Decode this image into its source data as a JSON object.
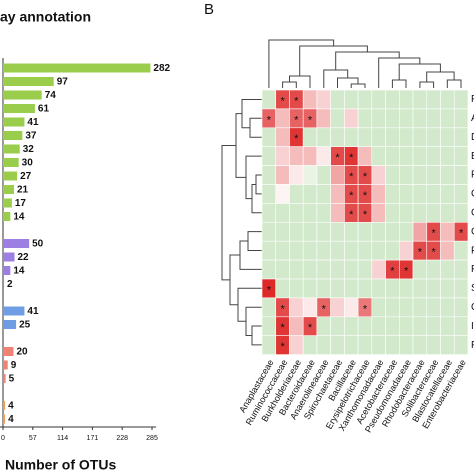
{
  "chart_data": [
    {
      "type": "bar",
      "orientation": "horizontal",
      "title": "ay annotation",
      "x_label": "Number of OTUs",
      "xlim": [
        0,
        285
      ],
      "xticks": [
        0,
        57,
        114,
        171,
        228,
        285
      ],
      "series": [
        {
          "color": "#9acd4c",
          "values": [
            282,
            97,
            74,
            61,
            41,
            37,
            32,
            30,
            27,
            21,
            17,
            14
          ]
        },
        {
          "color": "#9b7fe2",
          "values": [
            50,
            22,
            14,
            2
          ]
        },
        {
          "color": "#6e9de3",
          "values": [
            41,
            25
          ]
        },
        {
          "color": "#ef8272",
          "values": [
            20,
            9,
            5
          ]
        },
        {
          "color": "#f0a050",
          "values": [
            4,
            4
          ]
        }
      ]
    },
    {
      "type": "heatmap",
      "panel_label": "B",
      "rows": [
        "F",
        "A",
        "D",
        "Bi",
        "P",
        "C",
        "G",
        "G",
        "P",
        "P",
        "S",
        "G",
        "In",
        "P"
      ],
      "columns": [
        "Anaplastaceae",
        "Ruminococcaceae",
        "Burkholderiaceae",
        "Bacteroidaceae",
        "Anaerolineaceae",
        "Spirochaetaceae",
        "Bacillaceae",
        "Erysipelotrichaceae",
        "Xanthomonadaceae",
        "Acetobacteraceae",
        "Pseudomonadaceae",
        "Rhodobacteraceae",
        "Solibacteraceae",
        "Blastocatellaceae",
        "Enterobacteriaceae"
      ],
      "values": [
        [
          -0.2,
          0.8,
          0.8,
          0.3,
          0.2,
          -0.2,
          -0.2,
          -0.2,
          -0.2,
          -0.2,
          -0.2,
          -0.2,
          -0.2,
          -0.2,
          -0.2
        ],
        [
          0.7,
          0.3,
          0.7,
          0.7,
          0.3,
          -0.2,
          0.2,
          -0.2,
          -0.2,
          -0.2,
          -0.2,
          -0.2,
          -0.2,
          -0.2,
          -0.2
        ],
        [
          -0.2,
          0.3,
          0.9,
          -0.2,
          -0.2,
          -0.2,
          -0.2,
          -0.2,
          -0.2,
          -0.2,
          -0.2,
          -0.2,
          -0.2,
          -0.2,
          -0.2
        ],
        [
          -0.2,
          0.2,
          0.3,
          0.3,
          0.1,
          0.8,
          0.9,
          0.3,
          -0.2,
          -0.2,
          -0.2,
          -0.2,
          -0.2,
          -0.2,
          -0.2
        ],
        [
          -0.2,
          0.3,
          0.1,
          -0.1,
          -0.2,
          0.4,
          0.8,
          0.8,
          0.2,
          -0.2,
          -0.2,
          -0.2,
          -0.2,
          -0.2,
          -0.2
        ],
        [
          -0.2,
          0.05,
          -0.2,
          -0.2,
          -0.2,
          0.3,
          0.8,
          0.8,
          0.3,
          -0.2,
          -0.2,
          -0.2,
          -0.2,
          -0.2,
          -0.2
        ],
        [
          -0.2,
          -0.2,
          -0.2,
          -0.2,
          -0.2,
          0.3,
          0.8,
          0.8,
          0.3,
          -0.2,
          -0.2,
          -0.2,
          -0.2,
          -0.2,
          -0.2
        ],
        [
          -0.2,
          -0.2,
          -0.2,
          -0.2,
          -0.2,
          -0.2,
          -0.2,
          -0.2,
          -0.2,
          -0.2,
          -0.2,
          0.4,
          0.8,
          0.3,
          0.8
        ],
        [
          -0.2,
          -0.2,
          -0.2,
          -0.2,
          -0.2,
          -0.2,
          -0.2,
          -0.2,
          -0.2,
          -0.2,
          0.2,
          0.8,
          0.8,
          0.3,
          -0.2
        ],
        [
          -0.2,
          -0.2,
          -0.2,
          -0.2,
          -0.2,
          -0.2,
          -0.2,
          -0.2,
          0.2,
          0.85,
          0.9,
          -0.2,
          -0.2,
          -0.2,
          -0.2
        ],
        [
          0.95,
          -0.2,
          -0.2,
          -0.2,
          -0.2,
          -0.2,
          -0.2,
          -0.2,
          -0.2,
          -0.2,
          -0.2,
          -0.2,
          -0.2,
          -0.2,
          -0.2
        ],
        [
          -0.2,
          0.8,
          0.2,
          0.1,
          0.7,
          0.2,
          0.1,
          0.6,
          -0.2,
          -0.2,
          -0.2,
          -0.2,
          -0.2,
          -0.2,
          -0.2
        ],
        [
          -0.2,
          0.9,
          0.3,
          0.8,
          -0.2,
          -0.2,
          -0.2,
          -0.2,
          -0.2,
          -0.2,
          -0.2,
          -0.2,
          -0.2,
          -0.2,
          -0.2
        ],
        [
          -0.2,
          0.9,
          0.2,
          -0.2,
          -0.2,
          -0.2,
          -0.2,
          -0.2,
          -0.2,
          -0.2,
          -0.2,
          -0.2,
          -0.2,
          -0.2,
          -0.2
        ]
      ],
      "stars": [
        [
          null,
          "*",
          "*",
          null,
          null,
          null,
          null,
          null,
          null,
          null,
          null,
          null,
          null,
          null,
          null
        ],
        [
          "*",
          null,
          "*",
          "*",
          null,
          null,
          null,
          null,
          null,
          null,
          null,
          null,
          null,
          null,
          null
        ],
        [
          null,
          null,
          "*",
          null,
          null,
          null,
          null,
          null,
          null,
          null,
          null,
          null,
          null,
          null,
          null
        ],
        [
          null,
          null,
          null,
          null,
          null,
          "*",
          "*",
          null,
          null,
          null,
          null,
          null,
          null,
          null,
          null
        ],
        [
          null,
          null,
          null,
          null,
          null,
          null,
          "*",
          "*",
          null,
          null,
          null,
          null,
          null,
          null,
          null
        ],
        [
          null,
          null,
          null,
          null,
          null,
          null,
          "*",
          "*",
          null,
          null,
          null,
          null,
          null,
          null,
          null
        ],
        [
          null,
          null,
          null,
          null,
          null,
          null,
          "*",
          "*",
          null,
          null,
          null,
          null,
          null,
          null,
          null
        ],
        [
          null,
          null,
          null,
          null,
          null,
          null,
          null,
          null,
          null,
          null,
          null,
          null,
          "*",
          null,
          "*"
        ],
        [
          null,
          null,
          null,
          null,
          null,
          null,
          null,
          null,
          null,
          null,
          null,
          "*",
          "*",
          null,
          null
        ],
        [
          null,
          null,
          null,
          null,
          null,
          null,
          null,
          null,
          null,
          "*",
          "*",
          null,
          null,
          null,
          null
        ],
        [
          "*",
          null,
          null,
          null,
          null,
          null,
          null,
          null,
          null,
          null,
          null,
          null,
          null,
          null,
          null
        ],
        [
          null,
          "*",
          null,
          null,
          "*",
          null,
          null,
          "*",
          null,
          null,
          null,
          null,
          null,
          null,
          null
        ],
        [
          null,
          "*",
          null,
          "*",
          null,
          null,
          null,
          null,
          null,
          null,
          null,
          null,
          null,
          null,
          null
        ],
        [
          null,
          "*",
          null,
          null,
          null,
          null,
          null,
          null,
          null,
          null,
          null,
          null,
          null,
          null,
          null
        ]
      ]
    }
  ]
}
